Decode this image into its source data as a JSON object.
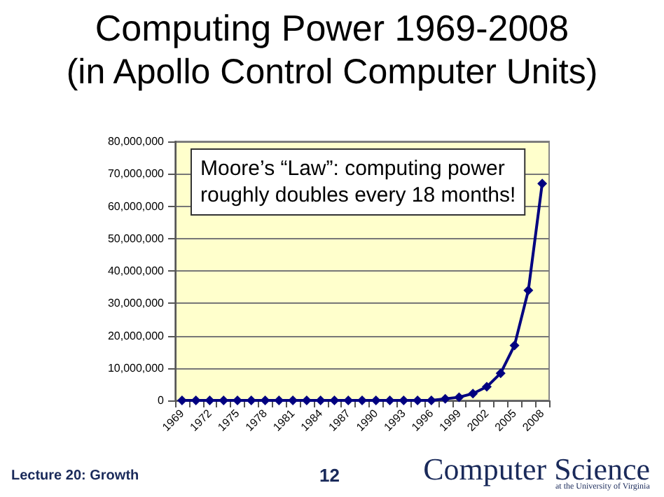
{
  "chart_data": {
    "type": "line",
    "title": "Computing Power 1969-2008",
    "subtitle": "(in Apollo Control Computer Units)",
    "categories": [
      "1969",
      null,
      "1972",
      null,
      "1975",
      null,
      "1978",
      null,
      "1981",
      null,
      "1984",
      null,
      "1987",
      null,
      "1990",
      null,
      "1993",
      null,
      "1996",
      null,
      "1999",
      null,
      "2002",
      null,
      "2005",
      null,
      "2008"
    ],
    "series": [
      {
        "color": "#000080",
        "values": [
          0,
          0,
          0,
          0,
          0,
          0,
          0,
          0,
          0,
          0,
          0,
          0,
          0,
          0,
          0,
          0,
          0,
          0,
          0,
          500000,
          1000000,
          2100000,
          4200000,
          8400000,
          17000000,
          34000000,
          67000000
        ]
      }
    ],
    "ylim": [
      0,
      80000000
    ],
    "yticks": [
      0,
      {
        "value": 10000000,
        "label": "10,000,000"
      },
      {
        "value": 20000000,
        "label": "20,000,000"
      },
      {
        "value": 30000000,
        "label": "30,000,000"
      },
      {
        "value": 40000000,
        "label": "40,000,000"
      },
      {
        "value": 50000000,
        "label": "50,000,000"
      },
      {
        "value": 60000000,
        "label": "60,000,000"
      },
      {
        "value": 70000000,
        "label": "70,000,000"
      },
      {
        "value": 80000000,
        "label": "80,000,000"
      }
    ],
    "grid": "y",
    "marker": "diamond",
    "annotations": [
      "Moore’s “Law”: computing power\nroughly doubles every 18 months!",
      "Lecture 20: Growth",
      "12",
      "Computer Science",
      "at the University of Virginia"
    ]
  }
}
